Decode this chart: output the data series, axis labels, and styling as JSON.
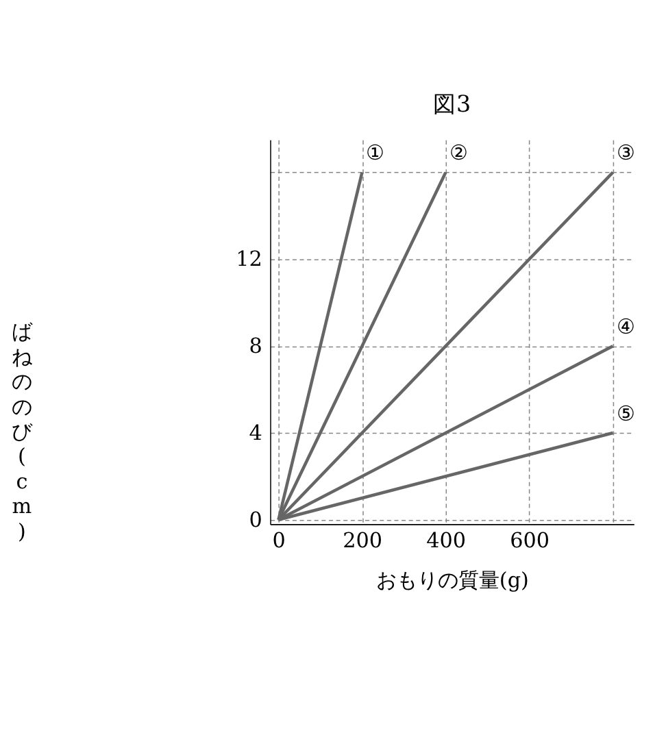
{
  "chart_data": {
    "type": "line",
    "title": "図3",
    "xlabel": "おもりの質量(g)",
    "ylabel": "ばねののび(cm)",
    "xlim": [
      -20,
      850
    ],
    "ylim": [
      -0.2,
      17.5
    ],
    "xticks": [
      0,
      200,
      400,
      600,
      {
        "value": 800,
        "label": null
      }
    ],
    "yticks": [
      0,
      4,
      8,
      12,
      {
        "value": 16,
        "label": null
      }
    ],
    "grid": true,
    "legend": false,
    "marker": "none",
    "line_style": "solid",
    "series": [
      {
        "name": "①",
        "color": "#666666",
        "x": [
          0,
          200
        ],
        "values": [
          0,
          16
        ]
      },
      {
        "name": "②",
        "color": "#666666",
        "x": [
          0,
          400
        ],
        "values": [
          0,
          16
        ]
      },
      {
        "name": "③",
        "color": "#666666",
        "x": [
          0,
          800
        ],
        "values": [
          0,
          16
        ]
      },
      {
        "name": "④",
        "color": "#666666",
        "x": [
          0,
          800
        ],
        "values": [
          0,
          8
        ]
      },
      {
        "name": "⑤",
        "color": "#666666",
        "x": [
          0,
          800
        ],
        "values": [
          0,
          4
        ]
      }
    ]
  }
}
